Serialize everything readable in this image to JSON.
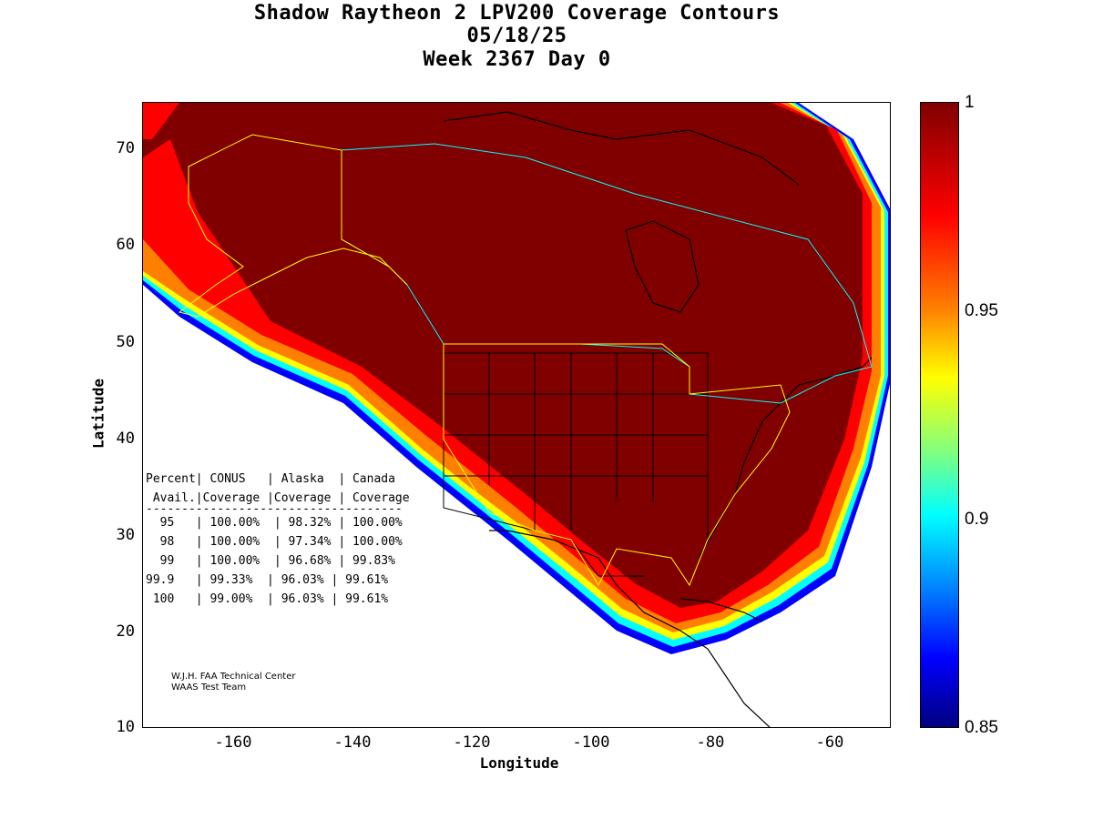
{
  "title": {
    "line1": "Shadow Raytheon 2 LPV200 Coverage Contours",
    "line2": "05/18/25",
    "line3": "Week 2367 Day 0"
  },
  "axes": {
    "xlabel": "Longitude",
    "ylabel": "Latitude",
    "x_ticks": [
      "-160",
      "-140",
      "-120",
      "-100",
      "-80",
      "-60"
    ],
    "y_ticks": [
      "70",
      "60",
      "50",
      "40",
      "30",
      "20",
      "10"
    ],
    "x_range": [
      -175,
      -50
    ],
    "y_range": [
      10,
      75
    ]
  },
  "colorbar": {
    "ticks": [
      "1",
      "0.95",
      "0.9",
      "0.85"
    ],
    "range": [
      0.85,
      1
    ],
    "colors": [
      "#800000",
      "#ff0000",
      "#ff8000",
      "#ffff00",
      "#80ff80",
      "#00ffff",
      "#0080ff",
      "#0000ff",
      "#000080"
    ]
  },
  "table": {
    "header1": "Percent| CONUS   | Alaska  | Canada",
    "header2": " Avail.|Coverage |Coverage | Coverage",
    "rule": "------------------------------------",
    "rows": [
      "  95   | 100.00%  | 98.32% | 100.00%",
      "  98   | 100.00%  | 97.34% | 100.00%",
      "  99   | 100.00%  | 96.68% | 99.83%",
      "99.9   | 99.33%  | 96.03% | 99.61%",
      " 100   | 99.00%  | 96.03% | 99.61%"
    ]
  },
  "credits": {
    "line1": "W.J.H. FAA Technical Center",
    "line2": "WAAS Test Team"
  },
  "map_colors": {
    "full": "#800000",
    "outline_country": "#00ffff",
    "outline_region": "#ffff00",
    "land": "#000000"
  }
}
